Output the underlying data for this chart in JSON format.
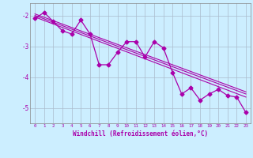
{
  "xlabel": "Windchill (Refroidissement éolien,°C)",
  "background_color": "#cceeff",
  "grid_color": "#aabbcc",
  "line_color": "#aa00aa",
  "spine_color": "#888888",
  "xlim": [
    -0.5,
    23.5
  ],
  "ylim": [
    -5.5,
    -1.6
  ],
  "yticks": [
    -5,
    -4,
    -3,
    -2
  ],
  "xticks": [
    0,
    1,
    2,
    3,
    4,
    5,
    6,
    7,
    8,
    9,
    10,
    11,
    12,
    13,
    14,
    15,
    16,
    17,
    18,
    19,
    20,
    21,
    22,
    23
  ],
  "data_x": [
    0,
    1,
    2,
    3,
    4,
    5,
    6,
    7,
    8,
    9,
    10,
    11,
    12,
    13,
    14,
    15,
    16,
    17,
    18,
    19,
    20,
    21,
    22,
    23
  ],
  "data_y": [
    -2.1,
    -1.9,
    -2.2,
    -2.5,
    -2.6,
    -2.15,
    -2.6,
    -3.6,
    -3.6,
    -3.2,
    -2.85,
    -2.85,
    -3.35,
    -2.85,
    -3.05,
    -3.85,
    -4.55,
    -4.35,
    -4.75,
    -4.55,
    -4.4,
    -4.6,
    -4.65,
    -5.15
  ],
  "trend_lines": [
    [
      -2.0,
      -4.55
    ],
    [
      -2.05,
      -4.65
    ],
    [
      -1.95,
      -4.48
    ]
  ]
}
